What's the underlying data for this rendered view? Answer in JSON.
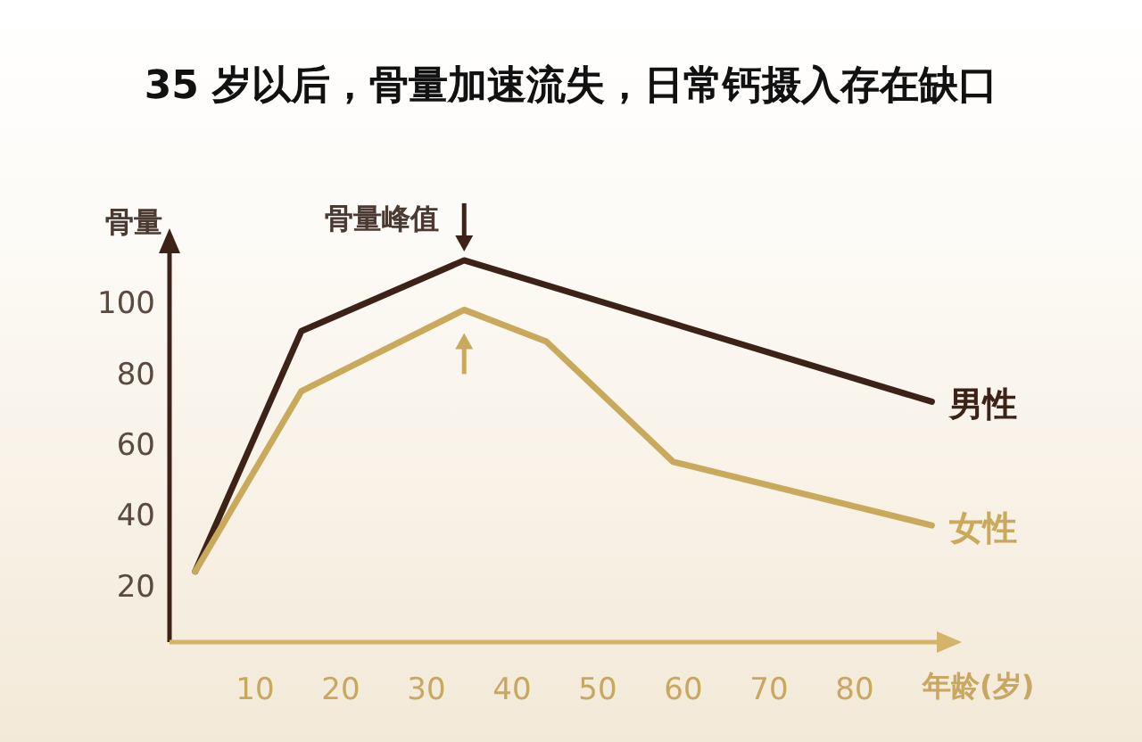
{
  "chart_data": {
    "type": "line",
    "title": "35 岁以后，骨量加速流失，日常钙摄入存在缺口",
    "xlabel": "年龄(岁)",
    "ylabel": "骨量",
    "xlim": [
      0,
      90
    ],
    "xticks": [
      10,
      20,
      30,
      40,
      50,
      60,
      70,
      80
    ],
    "ylim": [
      4,
      115
    ],
    "yticks": [
      20,
      40,
      60,
      80,
      100
    ],
    "grid": false,
    "marker": "none",
    "line_style": "solid",
    "series": [
      {
        "name": "男性",
        "color": "#3d2218",
        "x": [
          3,
          15.4,
          34.4,
          89
        ],
        "values": [
          24,
          92,
          112,
          72
        ]
      },
      {
        "name": "女性",
        "color": "#c9aa5c",
        "x": [
          3,
          15.4,
          34.4,
          44,
          58.8,
          89
        ],
        "values": [
          24,
          75,
          98,
          89,
          55,
          37
        ]
      }
    ],
    "annotations": [
      {
        "text": "骨量峰值",
        "x": 34.4,
        "y": 112
      }
    ]
  }
}
